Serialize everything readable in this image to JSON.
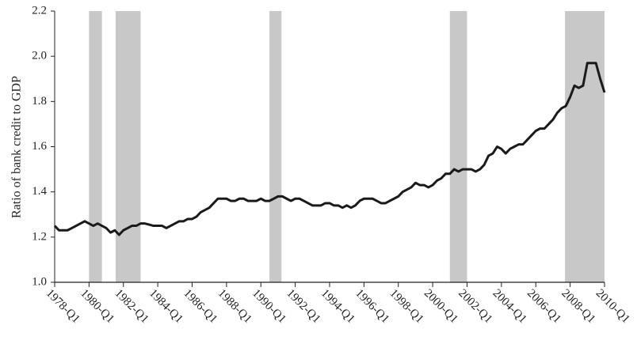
{
  "chart_data": {
    "type": "line",
    "y_label": "Ratio of bank credit to GDP",
    "x": [
      1978,
      1978.25,
      1978.5,
      1978.75,
      1979,
      1979.25,
      1979.5,
      1979.75,
      1980,
      1980.25,
      1980.5,
      1980.75,
      1981,
      1981.25,
      1981.5,
      1981.75,
      1982,
      1982.25,
      1982.5,
      1982.75,
      1983,
      1983.25,
      1983.5,
      1983.75,
      1984,
      1984.25,
      1984.5,
      1984.75,
      1985,
      1985.25,
      1985.5,
      1985.75,
      1986,
      1986.25,
      1986.5,
      1986.75,
      1987,
      1987.25,
      1987.5,
      1987.75,
      1988,
      1988.25,
      1988.5,
      1988.75,
      1989,
      1989.25,
      1989.5,
      1989.75,
      1990,
      1990.25,
      1990.5,
      1990.75,
      1991,
      1991.25,
      1991.5,
      1991.75,
      1992,
      1992.25,
      1992.5,
      1992.75,
      1993,
      1993.25,
      1993.5,
      1993.75,
      1994,
      1994.25,
      1994.5,
      1994.75,
      1995,
      1995.25,
      1995.5,
      1995.75,
      1996,
      1996.25,
      1996.5,
      1996.75,
      1997,
      1997.25,
      1997.5,
      1997.75,
      1998,
      1998.25,
      1998.5,
      1998.75,
      1999,
      1999.25,
      1999.5,
      1999.75,
      2000,
      2000.25,
      2000.5,
      2000.75,
      2001,
      2001.25,
      2001.5,
      2001.75,
      2002,
      2002.25,
      2002.5,
      2002.75,
      2003,
      2003.25,
      2003.5,
      2003.75,
      2004,
      2004.25,
      2004.5,
      2004.75,
      2005,
      2005.25,
      2005.5,
      2005.75,
      2006,
      2006.25,
      2006.5,
      2006.75,
      2007,
      2007.25,
      2007.5,
      2007.75,
      2008,
      2008.25,
      2008.5,
      2008.75,
      2009,
      2009.25,
      2009.5,
      2009.75,
      2010
    ],
    "series": [
      {
        "color": "#1a1a1a",
        "values": [
          1.25,
          1.23,
          1.23,
          1.23,
          1.24,
          1.25,
          1.26,
          1.27,
          1.26,
          1.25,
          1.26,
          1.25,
          1.24,
          1.22,
          1.23,
          1.21,
          1.23,
          1.24,
          1.25,
          1.25,
          1.26,
          1.26,
          1.255,
          1.25,
          1.25,
          1.25,
          1.24,
          1.25,
          1.26,
          1.27,
          1.27,
          1.28,
          1.28,
          1.29,
          1.31,
          1.32,
          1.33,
          1.35,
          1.37,
          1.37,
          1.37,
          1.36,
          1.36,
          1.37,
          1.37,
          1.36,
          1.36,
          1.36,
          1.37,
          1.36,
          1.36,
          1.37,
          1.38,
          1.38,
          1.37,
          1.36,
          1.37,
          1.37,
          1.36,
          1.35,
          1.34,
          1.34,
          1.34,
          1.35,
          1.35,
          1.34,
          1.34,
          1.33,
          1.34,
          1.33,
          1.34,
          1.36,
          1.37,
          1.37,
          1.37,
          1.36,
          1.35,
          1.35,
          1.36,
          1.37,
          1.38,
          1.4,
          1.41,
          1.42,
          1.44,
          1.43,
          1.43,
          1.42,
          1.43,
          1.45,
          1.46,
          1.48,
          1.48,
          1.5,
          1.49,
          1.5,
          1.5,
          1.5,
          1.49,
          1.5,
          1.52,
          1.56,
          1.57,
          1.6,
          1.59,
          1.57,
          1.59,
          1.6,
          1.61,
          1.61,
          1.63,
          1.65,
          1.67,
          1.68,
          1.68,
          1.7,
          1.72,
          1.75,
          1.77,
          1.78,
          1.82,
          1.87,
          1.86,
          1.87,
          1.97,
          1.97,
          1.97,
          1.9,
          1.84
        ]
      }
    ],
    "shaded_regions": [
      [
        1980,
        1980.75
      ],
      [
        1981.55,
        1983
      ],
      [
        1990.5,
        1991.2
      ],
      [
        2001,
        2002
      ],
      [
        2007.7,
        2010
      ]
    ],
    "shade_color": "#c8c8c8",
    "xlim": [
      1978,
      2010
    ],
    "xticks": [
      {
        "value": 1978,
        "label": "1978-Q1"
      },
      {
        "value": 1980,
        "label": "1980-Q1"
      },
      {
        "value": 1982,
        "label": "1982-Q1"
      },
      {
        "value": 1984,
        "label": "1984-Q1"
      },
      {
        "value": 1986,
        "label": "1986-Q1"
      },
      {
        "value": 1988,
        "label": "1988-Q1"
      },
      {
        "value": 1990,
        "label": "1990-Q1"
      },
      {
        "value": 1992,
        "label": "1992-Q1"
      },
      {
        "value": 1994,
        "label": "1994-Q1"
      },
      {
        "value": 1996,
        "label": "1996-Q1"
      },
      {
        "value": 1998,
        "label": "1998-Q1"
      },
      {
        "value": 2000,
        "label": "2000-Q1"
      },
      {
        "value": 2002,
        "label": "2002-Q1"
      },
      {
        "value": 2004,
        "label": "2004-Q1"
      },
      {
        "value": 2006,
        "label": "2006-Q1"
      },
      {
        "value": 2008,
        "label": "2008-Q1"
      },
      {
        "value": 2010,
        "label": "2010-Q1"
      }
    ],
    "ylim": [
      1.0,
      2.2
    ],
    "yticks": [
      {
        "value": 1,
        "label": "1.0"
      },
      1.2,
      1.4,
      1.6,
      1.8,
      {
        "value": 2,
        "label": "2.0"
      },
      2.2
    ]
  }
}
